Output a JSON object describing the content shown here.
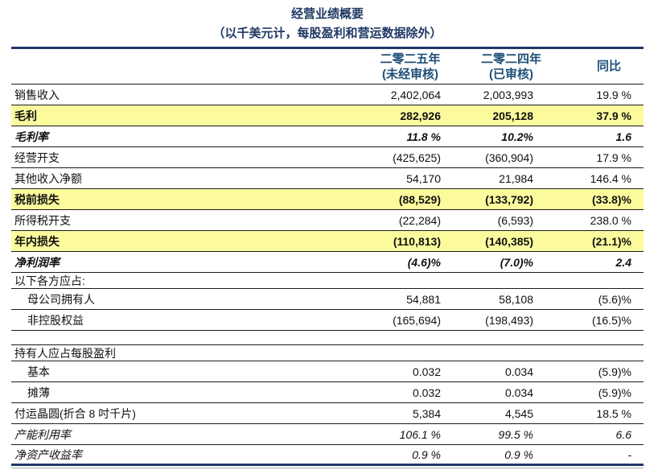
{
  "header": {
    "title": "经营业绩概要",
    "subtitle": "（以千美元计，每股盈利和营运数据除外）"
  },
  "table": {
    "columns": {
      "y2025": {
        "line1": "二零二五年",
        "line2": "(未经审核)"
      },
      "y2024": {
        "line1": "二零二四年",
        "line2": "(已审核)"
      },
      "yoy": "同比"
    },
    "rows": [
      {
        "label": "销售收入",
        "v2025": "2,402,064",
        "v2024": "2,003,993",
        "yoy": "19.9 %",
        "style": "normal"
      },
      {
        "label": "毛利",
        "v2025": "282,926",
        "v2024": "205,128",
        "yoy": "37.9 %",
        "style": "highlight"
      },
      {
        "label": "毛利率",
        "v2025": "11.8 %",
        "v2024": "10.2%",
        "yoy": "1.6",
        "style": "bold_italic"
      },
      {
        "label": "经营开支",
        "v2025": "(425,625)",
        "v2024": "(360,904)",
        "yoy": "17.9 %",
        "style": "normal"
      },
      {
        "label": "其他收入净额",
        "v2025": "54,170",
        "v2024": "21,984",
        "yoy": "146.4 %",
        "style": "normal"
      },
      {
        "label": "税前损失",
        "v2025": "(88,529)",
        "v2024": "(133,792)",
        "yoy": "(33.8)%",
        "style": "highlight"
      },
      {
        "label": "所得税开支",
        "v2025": "(22,284)",
        "v2024": "(6,593)",
        "yoy": "238.0 %",
        "style": "normal"
      },
      {
        "label": "年内损失",
        "v2025": "(110,813)",
        "v2024": "(140,385)",
        "yoy": "(21.1)%",
        "style": "highlight"
      },
      {
        "label": "净利润率",
        "v2025": "(4.6)%",
        "v2024": "(7.0)%",
        "yoy": "2.4",
        "style": "bold_italic"
      },
      {
        "label": "以下各方应占:",
        "v2025": "",
        "v2024": "",
        "yoy": "",
        "style": "section"
      },
      {
        "label": "母公司拥有人",
        "v2025": "54,881",
        "v2024": "58,108",
        "yoy": "(5.6)%",
        "style": "indent"
      },
      {
        "label": "非控股权益",
        "v2025": "(165,694)",
        "v2024": "(198,493)",
        "yoy": "(16.5)%",
        "style": "indent"
      },
      {
        "label": "",
        "v2025": "",
        "v2024": "",
        "yoy": "",
        "style": "spacer"
      },
      {
        "label": "持有人应占每股盈利",
        "v2025": "",
        "v2024": "",
        "yoy": "",
        "style": "section"
      },
      {
        "label": "基本",
        "v2025": "0.032",
        "v2024": "0.034",
        "yoy": "(5.9)%",
        "style": "indent"
      },
      {
        "label": "摊薄",
        "v2025": "0.032",
        "v2024": "0.034",
        "yoy": "(5.9)%",
        "style": "indent"
      },
      {
        "label": "付运晶圆(折合 8 吋千片)",
        "v2025": "5,384",
        "v2024": "4,545",
        "yoy": "18.5 %",
        "style": "normal"
      },
      {
        "label": "产能利用率",
        "v2025": "106.1 %",
        "v2024": "99.5 %",
        "yoy": "6.6",
        "style": "italic"
      },
      {
        "label": "净资产收益率",
        "v2025": "0.9 %",
        "v2024": "0.9 %",
        "yoy": "-",
        "style": "italic"
      }
    ]
  },
  "colors": {
    "title_navy": "#1F3864",
    "header_blue": "#1F4E79",
    "highlight_yellow": "#FBFB9E",
    "rule_dark": "#1b1b1b",
    "rule_gray": "#a9a9a9"
  }
}
